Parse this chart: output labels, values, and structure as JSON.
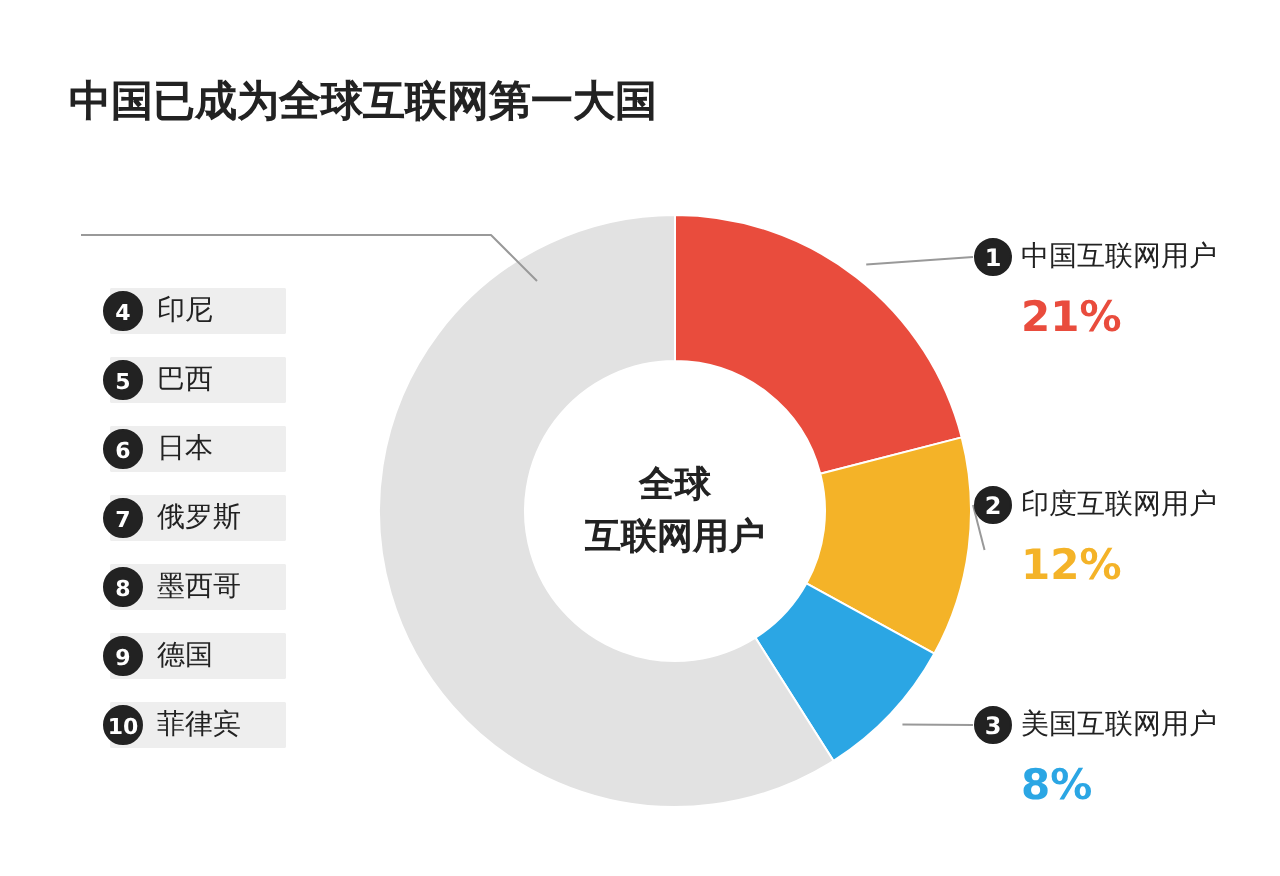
{
  "chart_data": {
    "type": "donut",
    "title": "中国已成为全球互联网第一大国",
    "categories": [
      "中国互联网用户",
      "印度互联网用户",
      "美国互联网用户",
      null
    ],
    "values": [
      21,
      12,
      8,
      59
    ],
    "colors": [
      "#e94c3d",
      "#f4b328",
      "#2ba6e4",
      "#e2e2e2"
    ],
    "value_labels": [
      "21%",
      "12%",
      "8%",
      null
    ],
    "annotations": [
      "全球",
      "互联网用户",
      "1",
      "2",
      "3",
      "4 印尼",
      "5 巴西",
      "6 日本",
      "7 俄罗斯",
      "8 墨西哥",
      "9 德国",
      "10 菲律宾"
    ]
  }
}
